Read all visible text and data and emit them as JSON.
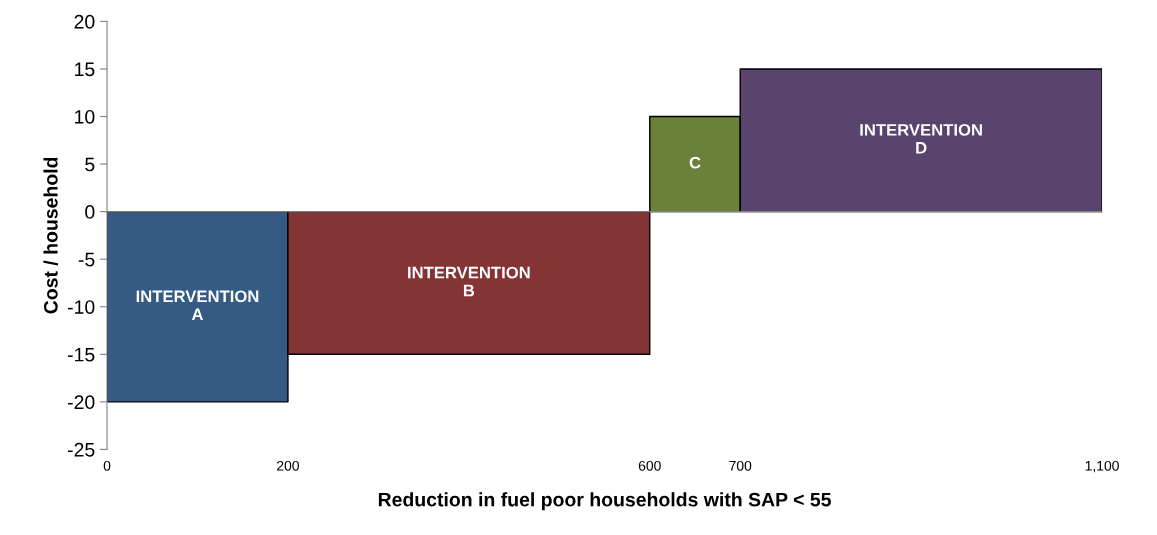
{
  "chart_data": {
    "type": "area",
    "xlabel": "Reduction in fuel poor households with SAP < 55",
    "ylabel": "Cost / household",
    "xlim": [
      0,
      1100
    ],
    "ylim": [
      -25,
      20
    ],
    "xticks": [
      0,
      200,
      600,
      700,
      {
        "value": 1100,
        "label": "1,100"
      }
    ],
    "yticks": [
      -25,
      -20,
      -15,
      -10,
      -5,
      0,
      5,
      10,
      15,
      20
    ],
    "series": [
      {
        "name": "INTERVENTION A",
        "color": "#355a84",
        "x": [
          0,
          200
        ],
        "values": [
          -20,
          -20
        ]
      },
      {
        "name": "INTERVENTION B",
        "color": "#843434",
        "x": [
          200,
          600
        ],
        "values": [
          -15,
          -15
        ]
      },
      {
        "name": "C",
        "color": "#6a803b",
        "x": [
          600,
          700
        ],
        "values": [
          10,
          10
        ]
      },
      {
        "name": "INTERVENTION D",
        "color": "#58446d",
        "x": [
          700,
          1100
        ],
        "values": [
          15,
          15
        ]
      }
    ]
  }
}
